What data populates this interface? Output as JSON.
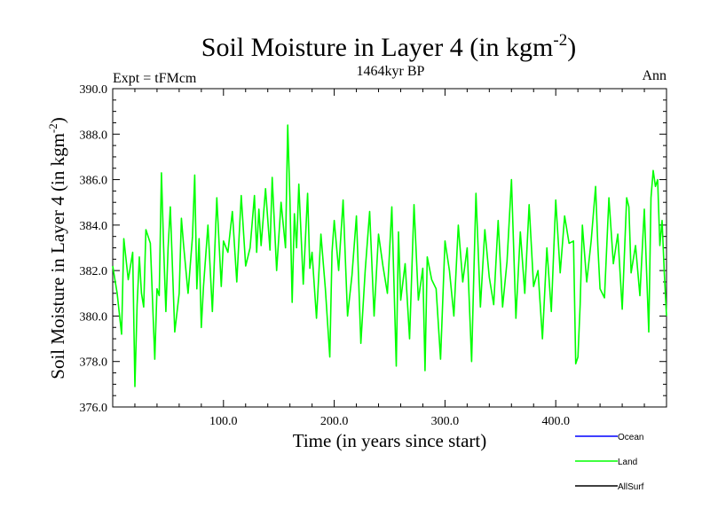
{
  "chart_data": {
    "type": "line",
    "title_main": "Soil Moisture in Layer 4 (in kgm",
    "title_sup": "-2",
    "title_close": ")",
    "subtitle": "1464kyr BP",
    "left_label": "Expt = tFMcm",
    "right_label": "Ann",
    "xlabel": "Time (in years since start)",
    "ylabel_main": "Soil Moisture in Layer 4 (in kgm",
    "ylabel_sup": "-2",
    "ylabel_close": ")",
    "xlim": [
      0,
      500
    ],
    "ylim": [
      376.0,
      390.0
    ],
    "xticks": [
      100,
      200,
      300,
      400
    ],
    "xtick_labels": [
      "100.0",
      "200.0",
      "300.0",
      "400.0"
    ],
    "yticks": [
      376,
      378,
      380,
      382,
      384,
      386,
      388,
      390
    ],
    "ytick_labels": [
      "376.0",
      "378.0",
      "380.0",
      "382.0",
      "384.0",
      "386.0",
      "388.0",
      "390.0"
    ],
    "legend": [
      {
        "name": "Ocean",
        "color": "#0000ff"
      },
      {
        "name": "Land",
        "color": "#00ff00"
      },
      {
        "name": "AllSurf",
        "color": "#000000"
      }
    ],
    "series": [
      {
        "name": "Land",
        "color": "#00ff00",
        "x": [
          0,
          4,
          8,
          10,
          14,
          18,
          20,
          22,
          24,
          26,
          28,
          30,
          34,
          38,
          40,
          42,
          44,
          46,
          48,
          50,
          52,
          56,
          60,
          62,
          64,
          68,
          72,
          74,
          76,
          78,
          80,
          82,
          86,
          90,
          94,
          98,
          100,
          104,
          108,
          112,
          116,
          120,
          124,
          128,
          130,
          132,
          134,
          138,
          142,
          144,
          148,
          152,
          156,
          158,
          160,
          162,
          164,
          166,
          168,
          172,
          176,
          178,
          180,
          184,
          188,
          192,
          196,
          198,
          200,
          204,
          208,
          212,
          216,
          220,
          224,
          228,
          232,
          236,
          240,
          244,
          248,
          252,
          256,
          258,
          260,
          264,
          268,
          272,
          276,
          280,
          282,
          284,
          288,
          292,
          296,
          300,
          304,
          308,
          312,
          316,
          320,
          324,
          326,
          328,
          332,
          336,
          340,
          344,
          348,
          352,
          356,
          360,
          364,
          368,
          372,
          376,
          380,
          384,
          388,
          392,
          396,
          400,
          404,
          408,
          412,
          416,
          418,
          420,
          422,
          424,
          428,
          432,
          436,
          438,
          440,
          444,
          448,
          452,
          456,
          460,
          464,
          466,
          468,
          472,
          476,
          480,
          484,
          486,
          488,
          490,
          492,
          494,
          496,
          498,
          500
        ],
        "values": [
          382.2,
          381.0,
          379.2,
          383.4,
          381.6,
          382.8,
          376.9,
          380.5,
          382.6,
          381.0,
          380.4,
          383.8,
          383.2,
          378.1,
          381.2,
          380.9,
          386.3,
          383.0,
          380.2,
          383.0,
          384.8,
          379.3,
          381.0,
          384.3,
          383.1,
          381.0,
          383.5,
          386.2,
          381.2,
          383.4,
          379.5,
          381.3,
          384.0,
          380.2,
          385.2,
          381.3,
          383.3,
          382.8,
          384.6,
          381.5,
          385.3,
          382.2,
          383.0,
          385.3,
          382.8,
          384.7,
          383.1,
          385.6,
          382.9,
          386.1,
          382.0,
          385.0,
          383.0,
          388.4,
          385.1,
          380.6,
          384.5,
          383.0,
          385.8,
          381.4,
          385.4,
          382.1,
          382.8,
          379.9,
          383.6,
          381.2,
          378.2,
          382.8,
          384.2,
          382.0,
          385.1,
          380.0,
          381.8,
          384.4,
          378.8,
          382.0,
          384.6,
          380.0,
          383.6,
          382.2,
          381.0,
          384.8,
          377.8,
          383.7,
          380.7,
          382.3,
          379.0,
          384.9,
          380.7,
          382.1,
          377.6,
          382.6,
          381.6,
          381.2,
          378.1,
          383.3,
          382.0,
          380.0,
          384.0,
          381.5,
          383.0,
          378.0,
          381.7,
          385.4,
          380.4,
          383.8,
          381.7,
          380.5,
          384.2,
          380.4,
          382.4,
          386.0,
          379.9,
          383.7,
          381.0,
          384.9,
          381.3,
          382.0,
          379.0,
          383.0,
          380.2,
          385.1,
          381.9,
          384.4,
          383.2,
          383.3,
          377.9,
          378.2,
          380.5,
          384.0,
          381.5,
          383.3,
          385.7,
          383.1,
          381.2,
          380.8,
          385.2,
          382.3,
          383.6,
          380.3,
          385.2,
          384.8,
          381.9,
          383.1,
          380.9,
          384.7,
          379.3,
          385.2,
          386.4,
          385.7,
          386.0,
          383.1,
          384.2,
          381.9,
          380.0
        ]
      }
    ]
  }
}
